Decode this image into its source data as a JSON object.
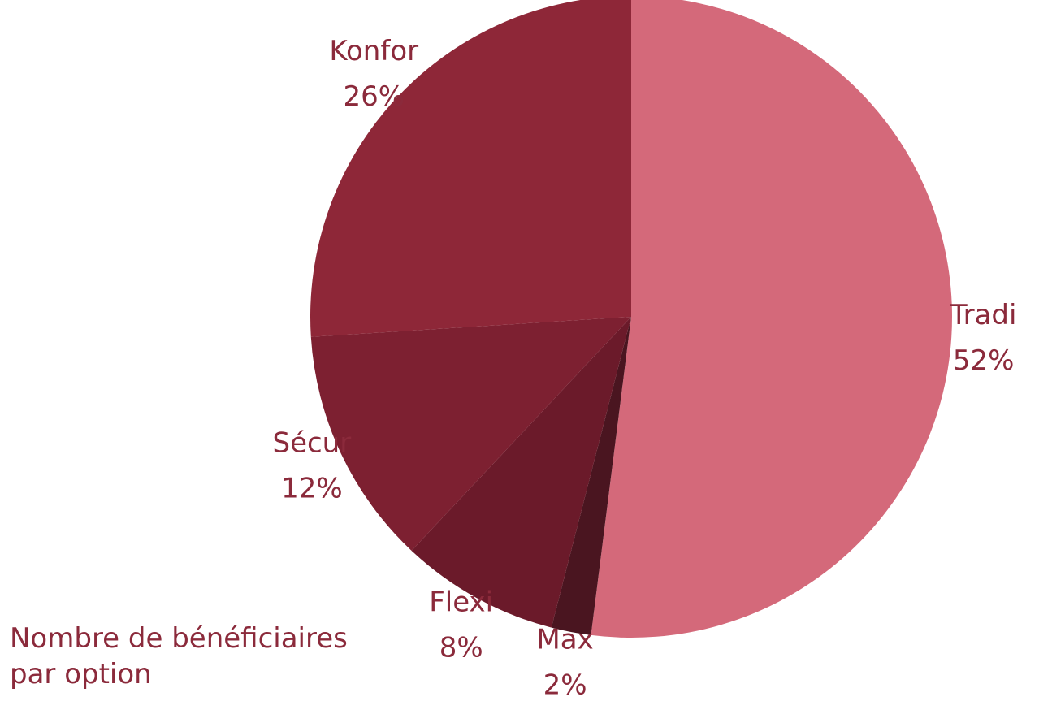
{
  "chart_data": {
    "type": "pie",
    "title": "Nombre de bénéficiaires par option",
    "categories": [
      "Tradi",
      "Max",
      "Flexi",
      "Sécur",
      "Konfor"
    ],
    "values": [
      52,
      2,
      8,
      12,
      26
    ],
    "value_labels": [
      "52%",
      "2%",
      "8%",
      "12%",
      "26%"
    ],
    "colors": [
      "#d4697a",
      "#4a1520",
      "#6b1a2a",
      "#7d2031",
      "#8e2738"
    ]
  }
}
